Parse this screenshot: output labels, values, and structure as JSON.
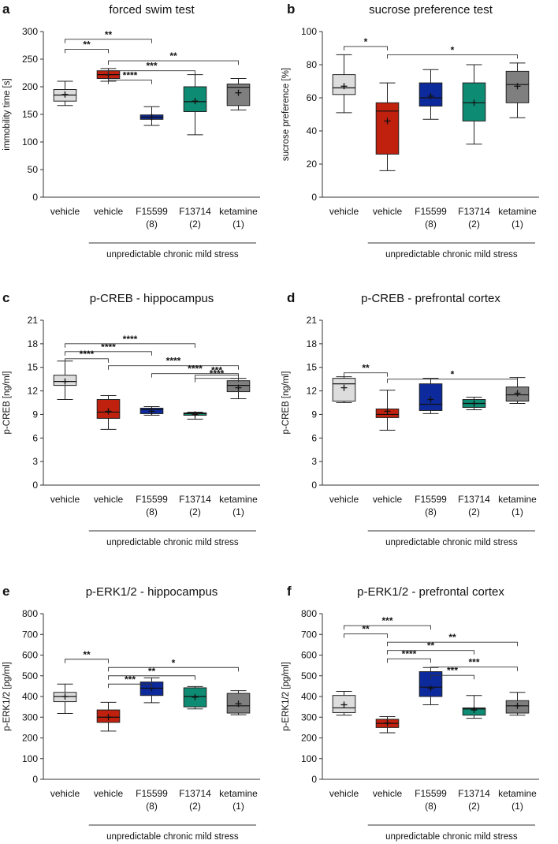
{
  "chart_data": [
    {
      "type": "boxplot",
      "letter": "a",
      "title": "forced swim test",
      "ylabel": "immobility time [s]",
      "ylim": [
        0,
        300
      ],
      "yticks": [
        0,
        50,
        100,
        150,
        200,
        250,
        300
      ],
      "categories": [
        {
          "name": "vehicle",
          "dose": ""
        },
        {
          "name": "vehicle",
          "dose": ""
        },
        {
          "name": "F15599",
          "dose": "(8)"
        },
        {
          "name": "F13714",
          "dose": "(2)"
        },
        {
          "name": "ketamine",
          "dose": "(1)"
        }
      ],
      "group_label": "unpredictable chronic mild stress",
      "colors": [
        "#dddddd",
        "#c0200e",
        "#0d2a9c",
        "#0e8c73",
        "#7f7f7f"
      ],
      "boxes": [
        {
          "min": 166,
          "q1": 174,
          "median": 185,
          "q3": 195,
          "max": 210,
          "mean": 186
        },
        {
          "min": 210,
          "q1": 215,
          "median": 222,
          "q3": 229,
          "max": 233,
          "mean": 222
        },
        {
          "min": 130,
          "q1": 141,
          "median": 145,
          "q3": 149,
          "max": 164,
          "mean": 145
        },
        {
          "min": 113,
          "q1": 155,
          "median": 173,
          "q3": 200,
          "max": 222,
          "mean": 174
        },
        {
          "min": 158,
          "q1": 166,
          "median": 199,
          "q3": 205,
          "max": 215,
          "mean": 189
        }
      ],
      "significance": [
        {
          "from": 0,
          "to": 2,
          "label": "**",
          "y": 286
        },
        {
          "from": 0,
          "to": 1,
          "label": "**",
          "y": 268
        },
        {
          "from": 1,
          "to": 4,
          "label": "**",
          "y": 247
        },
        {
          "from": 1,
          "to": 3,
          "label": "***",
          "y": 229
        },
        {
          "from": 1,
          "to": 2,
          "label": "****",
          "y": 212
        }
      ]
    },
    {
      "type": "boxplot",
      "letter": "b",
      "title": "sucrose preference test",
      "ylabel": "sucrose preference [%]",
      "ylim": [
        0,
        100
      ],
      "yticks": [
        0,
        20,
        40,
        60,
        80,
        100
      ],
      "categories": [
        {
          "name": "vehicle",
          "dose": ""
        },
        {
          "name": "vehicle",
          "dose": ""
        },
        {
          "name": "F15599",
          "dose": "(8)"
        },
        {
          "name": "F13714",
          "dose": "(2)"
        },
        {
          "name": "ketamine",
          "dose": "(1)"
        }
      ],
      "group_label": "unpredictable chronic mild stress",
      "colors": [
        "#dddddd",
        "#c0200e",
        "#0d2a9c",
        "#0e8c73",
        "#7f7f7f"
      ],
      "boxes": [
        {
          "min": 51,
          "q1": 62,
          "median": 66,
          "q3": 74,
          "max": 86,
          "mean": 67
        },
        {
          "min": 16,
          "q1": 26,
          "median": 52,
          "q3": 57,
          "max": 69,
          "mean": 46
        },
        {
          "min": 47,
          "q1": 55,
          "median": 60,
          "q3": 69,
          "max": 77,
          "mean": 61
        },
        {
          "min": 32,
          "q1": 46,
          "median": 57,
          "q3": 69,
          "max": 80,
          "mean": 57
        },
        {
          "min": 48,
          "q1": 57,
          "median": 68,
          "q3": 76,
          "max": 81,
          "mean": 67
        }
      ],
      "significance": [
        {
          "from": 0,
          "to": 1,
          "label": "*",
          "y": 91
        },
        {
          "from": 1,
          "to": 4,
          "label": "*",
          "y": 86
        }
      ]
    },
    {
      "type": "boxplot",
      "letter": "c",
      "title": "p-CREB - hippocampus",
      "ylabel": "p-CREB [ng/ml]",
      "ylim": [
        0,
        21
      ],
      "yticks": [
        0,
        3,
        6,
        9,
        12,
        15,
        18,
        21
      ],
      "categories": [
        {
          "name": "vehicle",
          "dose": ""
        },
        {
          "name": "vehicle",
          "dose": ""
        },
        {
          "name": "F15599",
          "dose": "(8)"
        },
        {
          "name": "F13714",
          "dose": "(2)"
        },
        {
          "name": "ketamine",
          "dose": "(1)"
        }
      ],
      "group_label": "unpredictable chronic mild stress",
      "colors": [
        "#dddddd",
        "#c0200e",
        "#0d2a9c",
        "#0e8c73",
        "#7f7f7f"
      ],
      "boxes": [
        {
          "min": 10.9,
          "q1": 12.7,
          "median": 13.2,
          "q3": 14.0,
          "max": 15.8,
          "mean": 13.2
        },
        {
          "min": 7.1,
          "q1": 8.5,
          "median": 9.3,
          "q3": 10.9,
          "max": 11.4,
          "mean": 9.4
        },
        {
          "min": 8.9,
          "q1": 9.1,
          "median": 9.6,
          "q3": 9.8,
          "max": 10.0,
          "mean": 9.4
        },
        {
          "min": 8.4,
          "q1": 8.9,
          "median": 9.1,
          "q3": 9.2,
          "max": 9.3,
          "mean": 9.0
        },
        {
          "min": 11.0,
          "q1": 11.9,
          "median": 12.7,
          "q3": 13.3,
          "max": 13.6,
          "mean": 12.4
        }
      ],
      "significance": [
        {
          "from": 0,
          "to": 3,
          "label": "****",
          "y": 18.0
        },
        {
          "from": 0,
          "to": 2,
          "label": "****",
          "y": 17.0
        },
        {
          "from": 0,
          "to": 1,
          "label": "****",
          "y": 16.1
        },
        {
          "from": 1,
          "to": 4,
          "label": "****",
          "y": 15.2
        },
        {
          "from": 2,
          "to": 4,
          "label": "****",
          "y": 14.2
        },
        {
          "from": 3,
          "to": 4,
          "label": "***",
          "y": 14.0
        },
        {
          "from": 3,
          "to": 4,
          "label": "****",
          "y": 13.6
        }
      ]
    },
    {
      "type": "boxplot",
      "letter": "d",
      "title": "p-CREB - prefrontal cortex",
      "ylabel": "p-CREB [ng/ml]",
      "ylim": [
        0,
        21
      ],
      "yticks": [
        0,
        3,
        6,
        9,
        12,
        15,
        18,
        21
      ],
      "categories": [
        {
          "name": "vehicle",
          "dose": ""
        },
        {
          "name": "vehicle",
          "dose": ""
        },
        {
          "name": "F15599",
          "dose": "(8)"
        },
        {
          "name": "F13714",
          "dose": "(2)"
        },
        {
          "name": "ketamine",
          "dose": "(1)"
        }
      ],
      "group_label": "unpredictable chronic mild stress",
      "colors": [
        "#dddddd",
        "#c0200e",
        "#0d2a9c",
        "#0e8c73",
        "#7f7f7f"
      ],
      "boxes": [
        {
          "min": 10.5,
          "q1": 10.7,
          "median": 12.9,
          "q3": 13.6,
          "max": 13.8,
          "mean": 12.4
        },
        {
          "min": 7.0,
          "q1": 8.6,
          "median": 9.0,
          "q3": 9.7,
          "max": 12.1,
          "mean": 9.4
        },
        {
          "min": 9.1,
          "q1": 9.5,
          "median": 10.3,
          "q3": 12.9,
          "max": 13.6,
          "mean": 10.9
        },
        {
          "min": 9.6,
          "q1": 9.9,
          "median": 10.4,
          "q3": 10.9,
          "max": 11.2,
          "mean": 10.4
        },
        {
          "min": 10.4,
          "q1": 10.7,
          "median": 11.5,
          "q3": 12.5,
          "max": 13.7,
          "mean": 11.7
        }
      ],
      "significance": [
        {
          "from": 0,
          "to": 1,
          "label": "**",
          "y": 14.3
        },
        {
          "from": 1,
          "to": 4,
          "label": "*",
          "y": 13.5
        }
      ]
    },
    {
      "type": "boxplot",
      "letter": "e",
      "title": "p-ERK1/2 - hippocampus",
      "ylabel": "p-ERK1/2 [pg/ml]",
      "ylim": [
        0,
        800
      ],
      "yticks": [
        0,
        100,
        200,
        300,
        400,
        500,
        600,
        700,
        800
      ],
      "categories": [
        {
          "name": "vehicle",
          "dose": ""
        },
        {
          "name": "vehicle",
          "dose": ""
        },
        {
          "name": "F15599",
          "dose": "(8)"
        },
        {
          "name": "F13714",
          "dose": "(2)"
        },
        {
          "name": "ketamine",
          "dose": "(1)"
        }
      ],
      "group_label": "unpredictable chronic mild stress",
      "colors": [
        "#dddddd",
        "#c0200e",
        "#0d2a9c",
        "#0e8c73",
        "#7f7f7f"
      ],
      "boxes": [
        {
          "min": 318,
          "q1": 375,
          "median": 400,
          "q3": 420,
          "max": 460,
          "mean": 400
        },
        {
          "min": 233,
          "q1": 275,
          "median": 300,
          "q3": 335,
          "max": 372,
          "mean": 300
        },
        {
          "min": 370,
          "q1": 405,
          "median": 440,
          "q3": 470,
          "max": 490,
          "mean": 440
        },
        {
          "min": 340,
          "q1": 350,
          "median": 400,
          "q3": 442,
          "max": 448,
          "mean": 397
        },
        {
          "min": 312,
          "q1": 320,
          "median": 355,
          "q3": 415,
          "max": 428,
          "mean": 365
        }
      ],
      "significance": [
        {
          "from": 0,
          "to": 1,
          "label": "**",
          "y": 580
        },
        {
          "from": 1,
          "to": 4,
          "label": "*",
          "y": 540
        },
        {
          "from": 1,
          "to": 3,
          "label": "**",
          "y": 500
        },
        {
          "from": 1,
          "to": 2,
          "label": "***",
          "y": 460
        }
      ]
    },
    {
      "type": "boxplot",
      "letter": "f",
      "title": "p-ERK1/2 - prefrontal cortex",
      "ylabel": "p-ERK1/2 [pg/ml]",
      "ylim": [
        0,
        800
      ],
      "yticks": [
        0,
        100,
        200,
        300,
        400,
        500,
        600,
        700,
        800
      ],
      "categories": [
        {
          "name": "vehicle",
          "dose": ""
        },
        {
          "name": "vehicle",
          "dose": ""
        },
        {
          "name": "F15599",
          "dose": "(8)"
        },
        {
          "name": "F13714",
          "dose": "(2)"
        },
        {
          "name": "ketamine",
          "dose": "(1)"
        }
      ],
      "group_label": "unpredictable chronic mild stress",
      "colors": [
        "#dddddd",
        "#c0200e",
        "#0d2a9c",
        "#0e8c73",
        "#7f7f7f"
      ],
      "boxes": [
        {
          "min": 310,
          "q1": 322,
          "median": 345,
          "q3": 405,
          "max": 425,
          "mean": 360
        },
        {
          "min": 225,
          "q1": 250,
          "median": 270,
          "q3": 290,
          "max": 303,
          "mean": 272
        },
        {
          "min": 360,
          "q1": 400,
          "median": 445,
          "q3": 520,
          "max": 540,
          "mean": 440
        },
        {
          "min": 295,
          "q1": 310,
          "median": 340,
          "q3": 345,
          "max": 405,
          "mean": 335
        },
        {
          "min": 310,
          "q1": 320,
          "median": 355,
          "q3": 380,
          "max": 420,
          "mean": 355
        }
      ],
      "significance": [
        {
          "from": 0,
          "to": 2,
          "label": "***",
          "y": 742
        },
        {
          "from": 0,
          "to": 1,
          "label": "**",
          "y": 702
        },
        {
          "from": 1,
          "to": 4,
          "label": "**",
          "y": 662
        },
        {
          "from": 1,
          "to": 3,
          "label": "**",
          "y": 622
        },
        {
          "from": 1,
          "to": 2,
          "label": "****",
          "y": 582
        },
        {
          "from": 2,
          "to": 4,
          "label": "***",
          "y": 542
        },
        {
          "from": 2,
          "to": 3,
          "label": "***",
          "y": 502
        }
      ]
    }
  ]
}
